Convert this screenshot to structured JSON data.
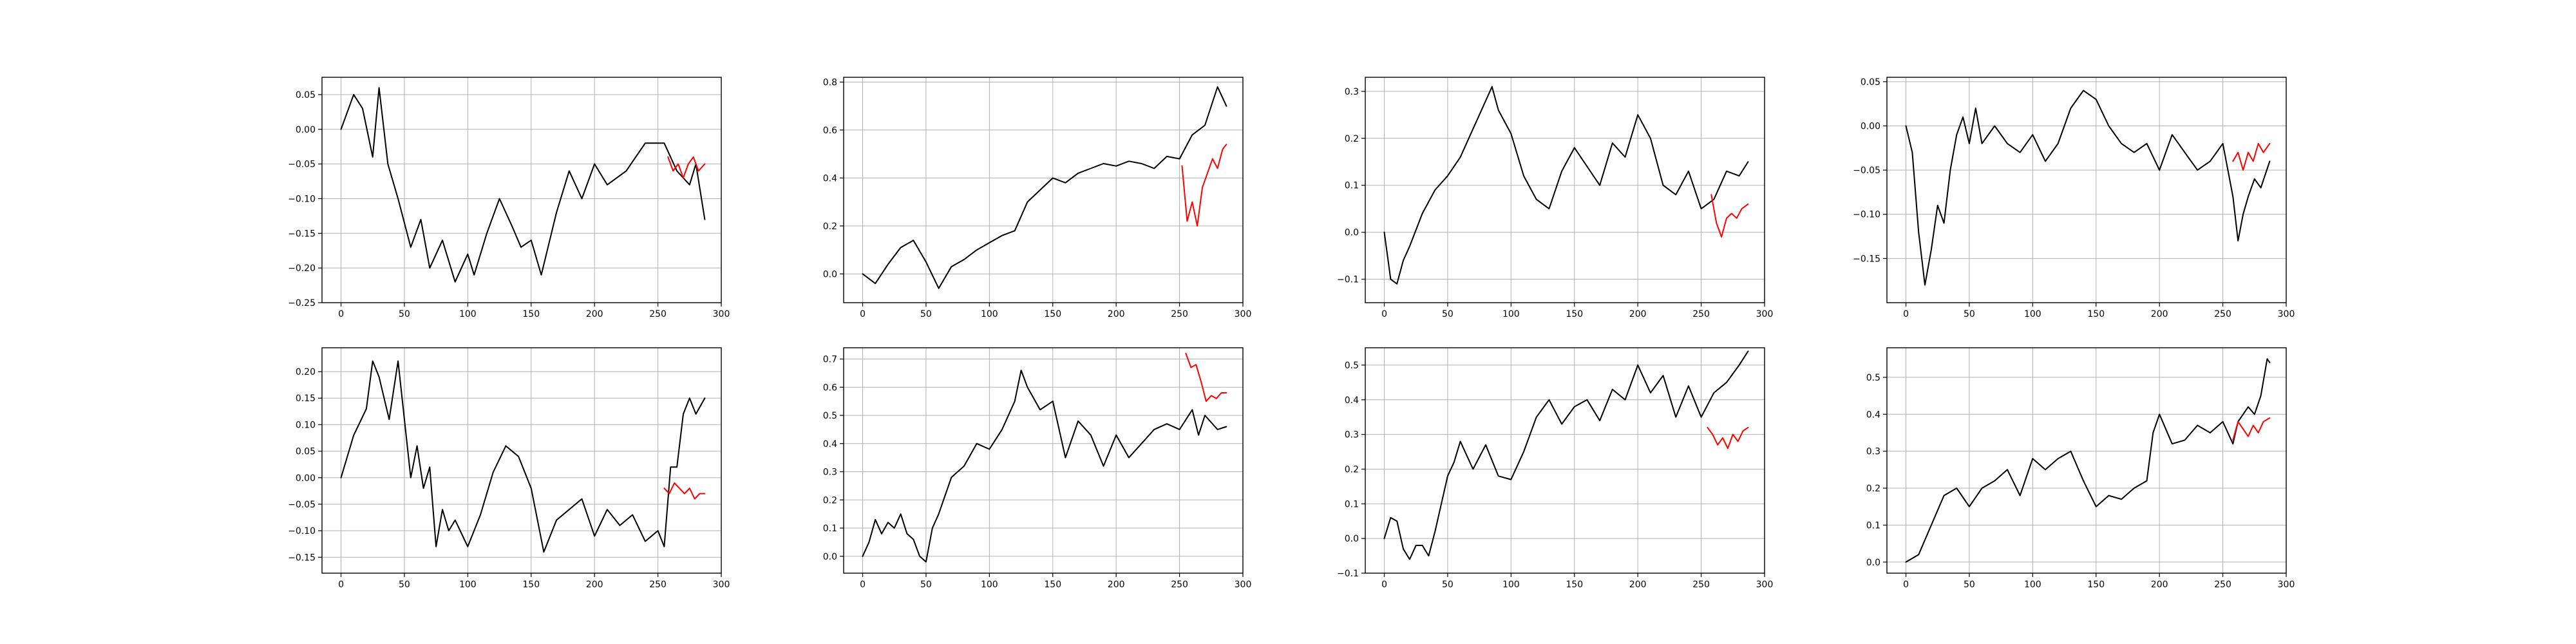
{
  "chart_data": [
    {
      "type": "line",
      "xlim": [
        -15,
        300
      ],
      "ylim": [
        -0.25,
        0.075
      ],
      "xticks": [
        0,
        50,
        100,
        150,
        200,
        250,
        300
      ],
      "yticks": [
        -0.25,
        -0.2,
        -0.15,
        -0.1,
        -0.05,
        0.0,
        0.05
      ],
      "ydecimals": 2,
      "grid": true,
      "series": [
        {
          "color": "#000000",
          "x": [
            0,
            10,
            17,
            25,
            30,
            37,
            45,
            55,
            63,
            70,
            80,
            90,
            100,
            105,
            115,
            125,
            135,
            142,
            150,
            158,
            170,
            180,
            190,
            200,
            210,
            225,
            240,
            255,
            265,
            275,
            280,
            287
          ],
          "y": [
            0.0,
            0.05,
            0.03,
            -0.04,
            0.06,
            -0.05,
            -0.1,
            -0.17,
            -0.13,
            -0.2,
            -0.16,
            -0.22,
            -0.18,
            -0.21,
            -0.15,
            -0.1,
            -0.14,
            -0.17,
            -0.16,
            -0.21,
            -0.12,
            -0.06,
            -0.1,
            -0.05,
            -0.08,
            -0.06,
            -0.02,
            -0.02,
            -0.06,
            -0.08,
            -0.05,
            -0.13
          ]
        },
        {
          "color": "#ff0000",
          "x": [
            258,
            262,
            266,
            270,
            274,
            278,
            282,
            287
          ],
          "y": [
            -0.04,
            -0.06,
            -0.05,
            -0.07,
            -0.05,
            -0.04,
            -0.06,
            -0.05
          ]
        }
      ]
    },
    {
      "type": "line",
      "xlim": [
        -15,
        300
      ],
      "ylim": [
        -0.12,
        0.82
      ],
      "xticks": [
        0,
        50,
        100,
        150,
        200,
        250,
        300
      ],
      "yticks": [
        0.0,
        0.2,
        0.4,
        0.6,
        0.8
      ],
      "ydecimals": 1,
      "grid": true,
      "series": [
        {
          "color": "#000000",
          "x": [
            0,
            10,
            20,
            30,
            40,
            50,
            60,
            70,
            80,
            90,
            100,
            110,
            120,
            130,
            140,
            150,
            160,
            170,
            180,
            190,
            200,
            210,
            220,
            230,
            240,
            250,
            260,
            270,
            280,
            287
          ],
          "y": [
            0.0,
            -0.04,
            0.04,
            0.11,
            0.14,
            0.05,
            -0.06,
            0.03,
            0.06,
            0.1,
            0.13,
            0.16,
            0.18,
            0.3,
            0.35,
            0.4,
            0.38,
            0.42,
            0.44,
            0.46,
            0.45,
            0.47,
            0.46,
            0.44,
            0.49,
            0.48,
            0.58,
            0.62,
            0.78,
            0.7
          ]
        },
        {
          "color": "#ff0000",
          "x": [
            252,
            256,
            260,
            264,
            268,
            272,
            276,
            280,
            284,
            287
          ],
          "y": [
            0.45,
            0.22,
            0.3,
            0.2,
            0.36,
            0.42,
            0.48,
            0.44,
            0.52,
            0.54
          ]
        }
      ]
    },
    {
      "type": "line",
      "xlim": [
        -15,
        300
      ],
      "ylim": [
        -0.15,
        0.33
      ],
      "xticks": [
        0,
        50,
        100,
        150,
        200,
        250,
        300
      ],
      "yticks": [
        -0.1,
        0.0,
        0.1,
        0.2,
        0.3
      ],
      "ydecimals": 1,
      "grid": true,
      "series": [
        {
          "color": "#000000",
          "x": [
            0,
            5,
            10,
            15,
            20,
            30,
            40,
            50,
            60,
            70,
            80,
            85,
            90,
            100,
            110,
            120,
            130,
            140,
            150,
            160,
            170,
            180,
            190,
            200,
            210,
            220,
            230,
            240,
            250,
            260,
            270,
            280,
            287
          ],
          "y": [
            0.0,
            -0.1,
            -0.11,
            -0.06,
            -0.03,
            0.04,
            0.09,
            0.12,
            0.16,
            0.22,
            0.28,
            0.31,
            0.26,
            0.21,
            0.12,
            0.07,
            0.05,
            0.13,
            0.18,
            0.14,
            0.1,
            0.19,
            0.16,
            0.25,
            0.2,
            0.1,
            0.08,
            0.13,
            0.05,
            0.07,
            0.13,
            0.12,
            0.15
          ]
        },
        {
          "color": "#ff0000",
          "x": [
            258,
            262,
            266,
            270,
            274,
            278,
            282,
            287
          ],
          "y": [
            0.08,
            0.02,
            -0.01,
            0.03,
            0.04,
            0.03,
            0.05,
            0.06
          ]
        }
      ]
    },
    {
      "type": "line",
      "xlim": [
        -15,
        300
      ],
      "ylim": [
        -0.2,
        0.055
      ],
      "xticks": [
        0,
        50,
        100,
        150,
        200,
        250,
        300
      ],
      "yticks": [
        -0.15,
        -0.1,
        -0.05,
        0.0,
        0.05
      ],
      "ydecimals": 2,
      "grid": true,
      "series": [
        {
          "color": "#000000",
          "x": [
            0,
            5,
            10,
            15,
            20,
            25,
            30,
            35,
            40,
            45,
            50,
            55,
            60,
            70,
            80,
            90,
            100,
            110,
            120,
            130,
            140,
            150,
            160,
            170,
            180,
            190,
            200,
            210,
            220,
            230,
            240,
            250,
            258,
            262,
            266,
            270,
            275,
            280,
            287
          ],
          "y": [
            0.0,
            -0.03,
            -0.12,
            -0.18,
            -0.14,
            -0.09,
            -0.11,
            -0.05,
            -0.01,
            0.01,
            -0.02,
            0.02,
            -0.02,
            0.0,
            -0.02,
            -0.03,
            -0.01,
            -0.04,
            -0.02,
            0.02,
            0.04,
            0.03,
            0.0,
            -0.02,
            -0.03,
            -0.02,
            -0.05,
            -0.01,
            -0.03,
            -0.05,
            -0.04,
            -0.02,
            -0.08,
            -0.13,
            -0.1,
            -0.08,
            -0.06,
            -0.07,
            -0.04
          ]
        },
        {
          "color": "#ff0000",
          "x": [
            258,
            262,
            266,
            270,
            274,
            278,
            282,
            287
          ],
          "y": [
            -0.04,
            -0.03,
            -0.05,
            -0.03,
            -0.04,
            -0.02,
            -0.03,
            -0.02
          ]
        }
      ]
    },
    {
      "type": "line",
      "xlim": [
        -15,
        300
      ],
      "ylim": [
        -0.18,
        0.245
      ],
      "xticks": [
        0,
        50,
        100,
        150,
        200,
        250,
        300
      ],
      "yticks": [
        -0.15,
        -0.1,
        -0.05,
        0.0,
        0.05,
        0.1,
        0.15,
        0.2
      ],
      "ydecimals": 2,
      "grid": true,
      "series": [
        {
          "color": "#000000",
          "x": [
            0,
            10,
            20,
            25,
            30,
            38,
            45,
            55,
            60,
            65,
            70,
            75,
            80,
            85,
            90,
            100,
            110,
            120,
            130,
            140,
            150,
            160,
            170,
            180,
            190,
            200,
            210,
            220,
            230,
            240,
            250,
            255,
            260,
            265,
            270,
            275,
            280,
            287
          ],
          "y": [
            0.0,
            0.08,
            0.13,
            0.22,
            0.19,
            0.11,
            0.22,
            0.0,
            0.06,
            -0.02,
            0.02,
            -0.13,
            -0.06,
            -0.1,
            -0.08,
            -0.13,
            -0.07,
            0.01,
            0.06,
            0.04,
            -0.02,
            -0.14,
            -0.08,
            -0.06,
            -0.04,
            -0.11,
            -0.06,
            -0.09,
            -0.07,
            -0.12,
            -0.1,
            -0.13,
            0.02,
            0.02,
            0.12,
            0.15,
            0.12,
            0.15
          ]
        },
        {
          "color": "#ff0000",
          "x": [
            255,
            259,
            263,
            267,
            271,
            275,
            279,
            283,
            287
          ],
          "y": [
            -0.02,
            -0.03,
            -0.01,
            -0.02,
            -0.03,
            -0.02,
            -0.04,
            -0.03,
            -0.03
          ]
        }
      ]
    },
    {
      "type": "line",
      "xlim": [
        -15,
        300
      ],
      "ylim": [
        -0.06,
        0.74
      ],
      "xticks": [
        0,
        50,
        100,
        150,
        200,
        250,
        300
      ],
      "yticks": [
        0.0,
        0.1,
        0.2,
        0.3,
        0.4,
        0.5,
        0.6,
        0.7
      ],
      "ydecimals": 1,
      "grid": true,
      "series": [
        {
          "color": "#000000",
          "x": [
            0,
            5,
            10,
            15,
            20,
            25,
            30,
            35,
            40,
            45,
            50,
            55,
            60,
            70,
            80,
            90,
            100,
            110,
            120,
            125,
            130,
            140,
            150,
            160,
            170,
            180,
            190,
            200,
            210,
            220,
            230,
            240,
            250,
            260,
            265,
            270,
            280,
            287
          ],
          "y": [
            0.0,
            0.05,
            0.13,
            0.08,
            0.12,
            0.1,
            0.15,
            0.08,
            0.06,
            0.0,
            -0.02,
            0.1,
            0.15,
            0.28,
            0.32,
            0.4,
            0.38,
            0.45,
            0.55,
            0.66,
            0.6,
            0.52,
            0.55,
            0.35,
            0.48,
            0.43,
            0.32,
            0.43,
            0.35,
            0.4,
            0.45,
            0.47,
            0.45,
            0.52,
            0.43,
            0.5,
            0.45,
            0.46
          ]
        },
        {
          "color": "#ff0000",
          "x": [
            255,
            259,
            263,
            267,
            271,
            275,
            279,
            283,
            287
          ],
          "y": [
            0.72,
            0.67,
            0.68,
            0.62,
            0.55,
            0.57,
            0.56,
            0.58,
            0.58
          ]
        }
      ]
    },
    {
      "type": "line",
      "xlim": [
        -15,
        300
      ],
      "ylim": [
        -0.1,
        0.55
      ],
      "xticks": [
        0,
        50,
        100,
        150,
        200,
        250,
        300
      ],
      "yticks": [
        -0.1,
        0.0,
        0.1,
        0.2,
        0.3,
        0.4,
        0.5
      ],
      "ydecimals": 1,
      "grid": true,
      "series": [
        {
          "color": "#000000",
          "x": [
            0,
            5,
            10,
            15,
            20,
            25,
            30,
            35,
            40,
            45,
            50,
            55,
            60,
            70,
            80,
            90,
            100,
            110,
            120,
            130,
            140,
            150,
            160,
            170,
            180,
            190,
            200,
            210,
            220,
            230,
            240,
            250,
            260,
            270,
            280,
            287
          ],
          "y": [
            0.0,
            0.06,
            0.05,
            -0.03,
            -0.06,
            -0.02,
            -0.02,
            -0.05,
            0.02,
            0.1,
            0.18,
            0.22,
            0.28,
            0.2,
            0.27,
            0.18,
            0.17,
            0.25,
            0.35,
            0.4,
            0.33,
            0.38,
            0.4,
            0.34,
            0.43,
            0.4,
            0.5,
            0.42,
            0.47,
            0.35,
            0.44,
            0.35,
            0.42,
            0.45,
            0.5,
            0.54
          ]
        },
        {
          "color": "#ff0000",
          "x": [
            255,
            259,
            263,
            267,
            271,
            275,
            279,
            283,
            287
          ],
          "y": [
            0.32,
            0.3,
            0.27,
            0.29,
            0.26,
            0.3,
            0.28,
            0.31,
            0.32
          ]
        }
      ]
    },
    {
      "type": "line",
      "xlim": [
        -15,
        300
      ],
      "ylim": [
        -0.03,
        0.58
      ],
      "xticks": [
        0,
        50,
        100,
        150,
        200,
        250,
        300
      ],
      "yticks": [
        0.0,
        0.1,
        0.2,
        0.3,
        0.4,
        0.5
      ],
      "ydecimals": 1,
      "grid": true,
      "series": [
        {
          "color": "#000000",
          "x": [
            0,
            10,
            20,
            30,
            40,
            50,
            60,
            70,
            80,
            90,
            100,
            110,
            120,
            130,
            140,
            150,
            160,
            170,
            180,
            190,
            195,
            200,
            210,
            220,
            230,
            240,
            250,
            258,
            262,
            270,
            275,
            280,
            285,
            287
          ],
          "y": [
            0.0,
            0.02,
            0.1,
            0.18,
            0.2,
            0.15,
            0.2,
            0.22,
            0.25,
            0.18,
            0.28,
            0.25,
            0.28,
            0.3,
            0.22,
            0.15,
            0.18,
            0.17,
            0.2,
            0.22,
            0.35,
            0.4,
            0.32,
            0.33,
            0.37,
            0.35,
            0.38,
            0.32,
            0.38,
            0.42,
            0.4,
            0.45,
            0.55,
            0.54
          ]
        },
        {
          "color": "#ff0000",
          "x": [
            258,
            262,
            266,
            270,
            274,
            278,
            282,
            287
          ],
          "y": [
            0.33,
            0.38,
            0.36,
            0.34,
            0.37,
            0.35,
            0.38,
            0.39
          ]
        }
      ]
    }
  ]
}
